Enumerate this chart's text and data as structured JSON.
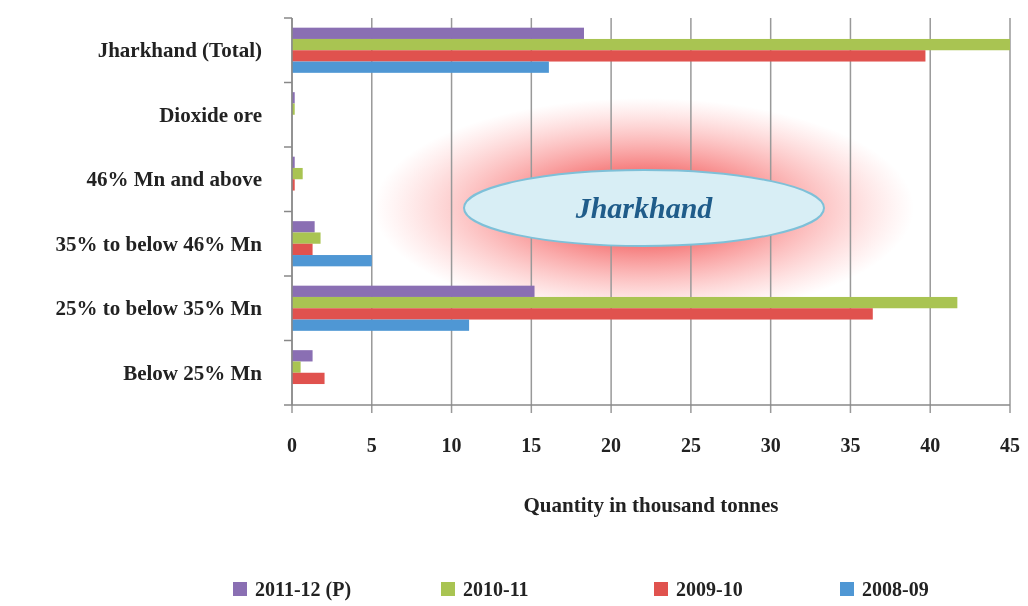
{
  "chart_data": {
    "type": "bar",
    "orientation": "horizontal",
    "categories": [
      "Jharkhand (Total)",
      "Dioxide ore",
      "46% Mn and above",
      "35% to below 46% Mn",
      "25% to below 35% Mn",
      "Below 25% Mn"
    ],
    "series": [
      {
        "name": "2011-12 (P)",
        "color": "#8a6fb3",
        "values": [
          18.3,
          0.17,
          0.17,
          1.42,
          15.2,
          1.29
        ]
      },
      {
        "name": "2010-11",
        "color": "#a9c452",
        "values": [
          45.0,
          0.17,
          0.67,
          1.79,
          41.7,
          0.54
        ]
      },
      {
        "name": "2009-10",
        "color": "#e0524e",
        "values": [
          39.7,
          null,
          0.17,
          1.29,
          36.4,
          2.04
        ]
      },
      {
        "name": "2008-09",
        "color": "#4f97d4",
        "values": [
          16.1,
          null,
          null,
          5.0,
          11.1,
          null
        ]
      }
    ],
    "xlim": [
      0,
      45
    ],
    "xticks": [
      0,
      5,
      10,
      15,
      20,
      25,
      30,
      35,
      40,
      45
    ],
    "xlabel": "Quantity in thousand tonnes",
    "grid": "x",
    "legend": "bottom",
    "annotations": [
      "Jharkhand"
    ]
  }
}
